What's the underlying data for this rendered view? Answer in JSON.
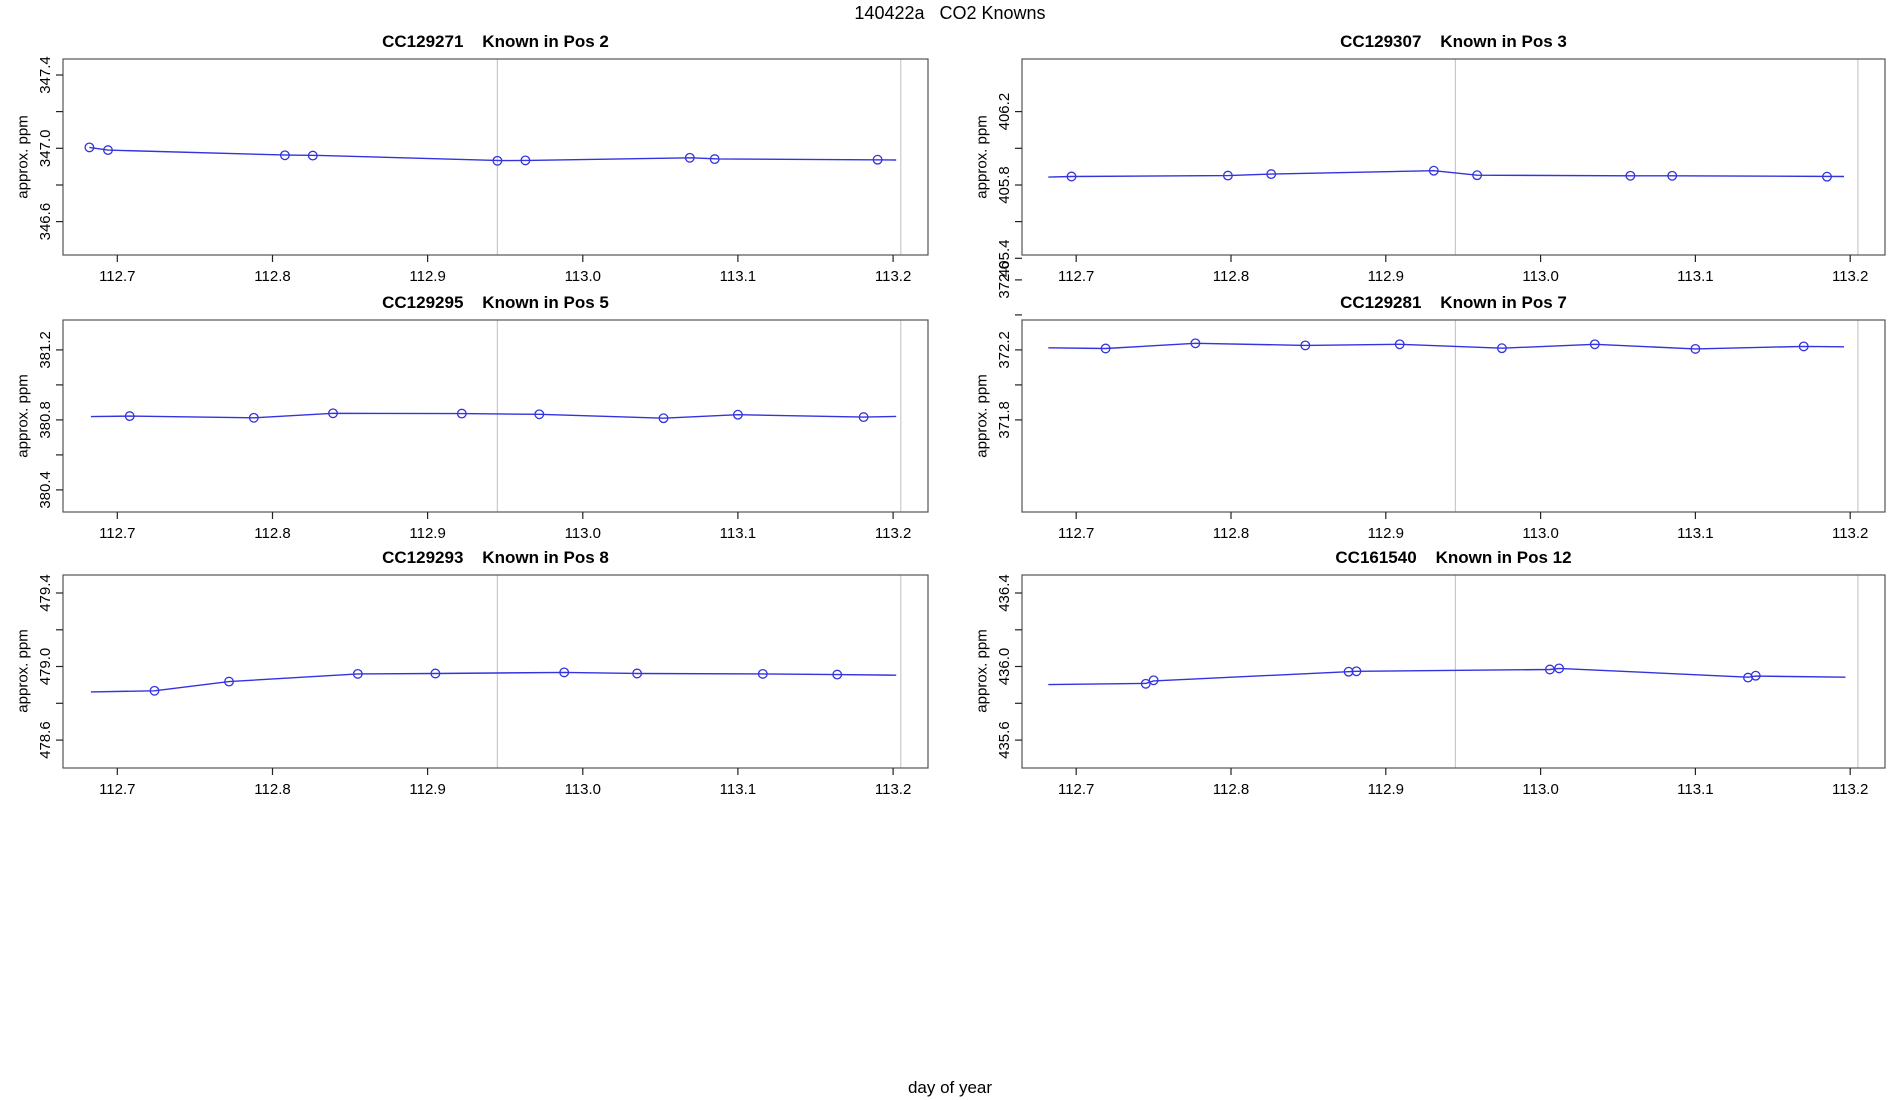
{
  "page_title": "140422a   CO2 Knowns",
  "xlabel": "day of year",
  "ylabel": "approx. ppm",
  "chart_data": {
    "type": "line",
    "layout": "3-rows-2-cols small multiples",
    "grid": "off",
    "legend": "none",
    "xlim": [
      112.665,
      113.2225
    ],
    "xticks": [
      112.7,
      112.8,
      112.9,
      113.0,
      113.1,
      113.2
    ],
    "xlabels": [
      "112.7",
      "112.8",
      "112.9",
      "113.0",
      "113.1",
      "113.2"
    ],
    "vlines": [
      112.945,
      113.205
    ],
    "series_color": "#3333e0",
    "vline_color": "#c9c9c9",
    "frame_color": "#545454",
    "panels": [
      {
        "sample_id": "CC129271",
        "position": "Pos 2",
        "title": "CC129271    Known in Pos 2",
        "ylim": [
          346.418,
          347.487
        ],
        "yticks": [
          346.6,
          346.8,
          347.0,
          347.2,
          347.4
        ],
        "ylabels": [
          "346.6",
          "",
          "347.0",
          "",
          "347.4"
        ],
        "points": [
          [
            112.682,
            347.005
          ],
          [
            112.694,
            346.99
          ],
          [
            112.808,
            346.962
          ],
          [
            112.826,
            346.96
          ],
          [
            112.945,
            346.932
          ],
          [
            112.963,
            346.934
          ],
          [
            113.069,
            346.948
          ],
          [
            113.085,
            346.941
          ],
          [
            113.19,
            346.938
          ]
        ],
        "line": [
          [
            112.682,
            347.005
          ],
          [
            112.694,
            346.99
          ],
          [
            112.81,
            346.963
          ],
          [
            112.83,
            346.961
          ],
          [
            112.947,
            346.933
          ],
          [
            112.965,
            346.934
          ],
          [
            113.07,
            346.948
          ],
          [
            113.087,
            346.942
          ],
          [
            113.202,
            346.936
          ]
        ]
      },
      {
        "sample_id": "CC129307",
        "position": "Pos 3",
        "title": "CC129307    Known in Pos 3",
        "ylim": [
          405.418,
          406.487
        ],
        "yticks": [
          405.4,
          405.6,
          405.8,
          406.0,
          406.2
        ],
        "ylabels": [
          "405.4",
          "",
          "405.8",
          "",
          "406.2"
        ],
        "points": [
          [
            112.697,
            405.846
          ],
          [
            112.798,
            405.851
          ],
          [
            112.826,
            405.859
          ],
          [
            112.931,
            405.878
          ],
          [
            112.959,
            405.853
          ],
          [
            113.058,
            405.85
          ],
          [
            113.085,
            405.85
          ],
          [
            113.185,
            405.845
          ]
        ],
        "line": [
          [
            112.682,
            405.843
          ],
          [
            112.697,
            405.846
          ],
          [
            112.798,
            405.851
          ],
          [
            112.826,
            405.859
          ],
          [
            112.931,
            405.878
          ],
          [
            112.959,
            405.853
          ],
          [
            113.058,
            405.85
          ],
          [
            113.085,
            405.85
          ],
          [
            113.196,
            405.846
          ]
        ]
      },
      {
        "sample_id": "CC129295",
        "position": "Pos 5",
        "title": "CC129295    Known in Pos 5",
        "ylim": [
          380.274,
          381.371
        ],
        "yticks": [
          380.4,
          380.6,
          380.8,
          381.0,
          381.2
        ],
        "ylabels": [
          "380.4",
          "",
          "380.8",
          "",
          "381.2"
        ],
        "points": [
          [
            112.708,
            380.822
          ],
          [
            112.788,
            380.812
          ],
          [
            112.839,
            380.838
          ],
          [
            112.922,
            380.836
          ],
          [
            112.972,
            380.832
          ],
          [
            113.052,
            380.81
          ],
          [
            113.1,
            380.83
          ],
          [
            113.181,
            380.816
          ]
        ],
        "line": [
          [
            112.683,
            380.819
          ],
          [
            112.708,
            380.822
          ],
          [
            112.788,
            380.812
          ],
          [
            112.839,
            380.838
          ],
          [
            112.922,
            380.836
          ],
          [
            112.972,
            380.832
          ],
          [
            113.052,
            380.81
          ],
          [
            113.1,
            380.83
          ],
          [
            113.181,
            380.816
          ],
          [
            113.202,
            380.82
          ]
        ]
      },
      {
        "sample_id": "CC129281",
        "position": "Pos 7",
        "title": "CC129281    Known in Pos 7",
        "ylim": [
          371.274,
          372.371
        ],
        "yticks": [
          371.8,
          372.0,
          372.2,
          372.4,
          372.6
        ],
        "ylabels": [
          "371.8",
          "",
          "372.2",
          "",
          "372.6"
        ],
        "points": [
          [
            112.719,
            372.208
          ],
          [
            112.777,
            372.238
          ],
          [
            112.848,
            372.226
          ],
          [
            112.909,
            372.232
          ],
          [
            112.975,
            372.21
          ],
          [
            113.035,
            372.232
          ],
          [
            113.1,
            372.206
          ],
          [
            113.17,
            372.22
          ]
        ],
        "line": [
          [
            112.682,
            372.212
          ],
          [
            112.719,
            372.208
          ],
          [
            112.777,
            372.238
          ],
          [
            112.848,
            372.226
          ],
          [
            112.909,
            372.232
          ],
          [
            112.975,
            372.21
          ],
          [
            113.035,
            372.232
          ],
          [
            113.1,
            372.206
          ],
          [
            113.17,
            372.22
          ],
          [
            113.196,
            372.218
          ]
        ]
      },
      {
        "sample_id": "CC129293",
        "position": "Pos 8",
        "title": "CC129293    Known in Pos 8",
        "ylim": [
          478.448,
          479.498
        ],
        "yticks": [
          478.6,
          478.8,
          479.0,
          479.2,
          479.4
        ],
        "ylabels": [
          "478.6",
          "",
          "479.0",
          "",
          "479.4"
        ],
        "points": [
          [
            112.724,
            478.868
          ],
          [
            112.772,
            478.918
          ],
          [
            112.855,
            478.96
          ],
          [
            112.905,
            478.962
          ],
          [
            112.988,
            478.968
          ],
          [
            113.035,
            478.962
          ],
          [
            113.116,
            478.96
          ],
          [
            113.164,
            478.956
          ]
        ],
        "line": [
          [
            112.683,
            478.862
          ],
          [
            112.724,
            478.868
          ],
          [
            112.772,
            478.918
          ],
          [
            112.855,
            478.96
          ],
          [
            112.905,
            478.962
          ],
          [
            112.988,
            478.968
          ],
          [
            113.035,
            478.962
          ],
          [
            113.116,
            478.96
          ],
          [
            113.164,
            478.956
          ],
          [
            113.202,
            478.953
          ]
        ]
      },
      {
        "sample_id": "CC161540",
        "position": "Pos 12",
        "title": "CC161540    Known in Pos 12",
        "ylim": [
          435.448,
          436.498
        ],
        "yticks": [
          435.6,
          435.8,
          436.0,
          436.2,
          436.4
        ],
        "ylabels": [
          "435.6",
          "",
          "436.0",
          "",
          "436.4"
        ],
        "points": [
          [
            112.745,
            435.906
          ],
          [
            112.75,
            435.925
          ],
          [
            112.876,
            435.972
          ],
          [
            112.881,
            435.974
          ],
          [
            113.006,
            435.984
          ],
          [
            113.012,
            435.99
          ],
          [
            113.134,
            435.94
          ],
          [
            113.139,
            435.95
          ]
        ],
        "line": [
          [
            112.682,
            435.902
          ],
          [
            112.745,
            435.908
          ],
          [
            112.75,
            435.922
          ],
          [
            112.876,
            435.972
          ],
          [
            112.881,
            435.974
          ],
          [
            113.006,
            435.984
          ],
          [
            113.012,
            435.99
          ],
          [
            113.134,
            435.942
          ],
          [
            113.139,
            435.948
          ],
          [
            113.197,
            435.942
          ]
        ]
      }
    ]
  }
}
